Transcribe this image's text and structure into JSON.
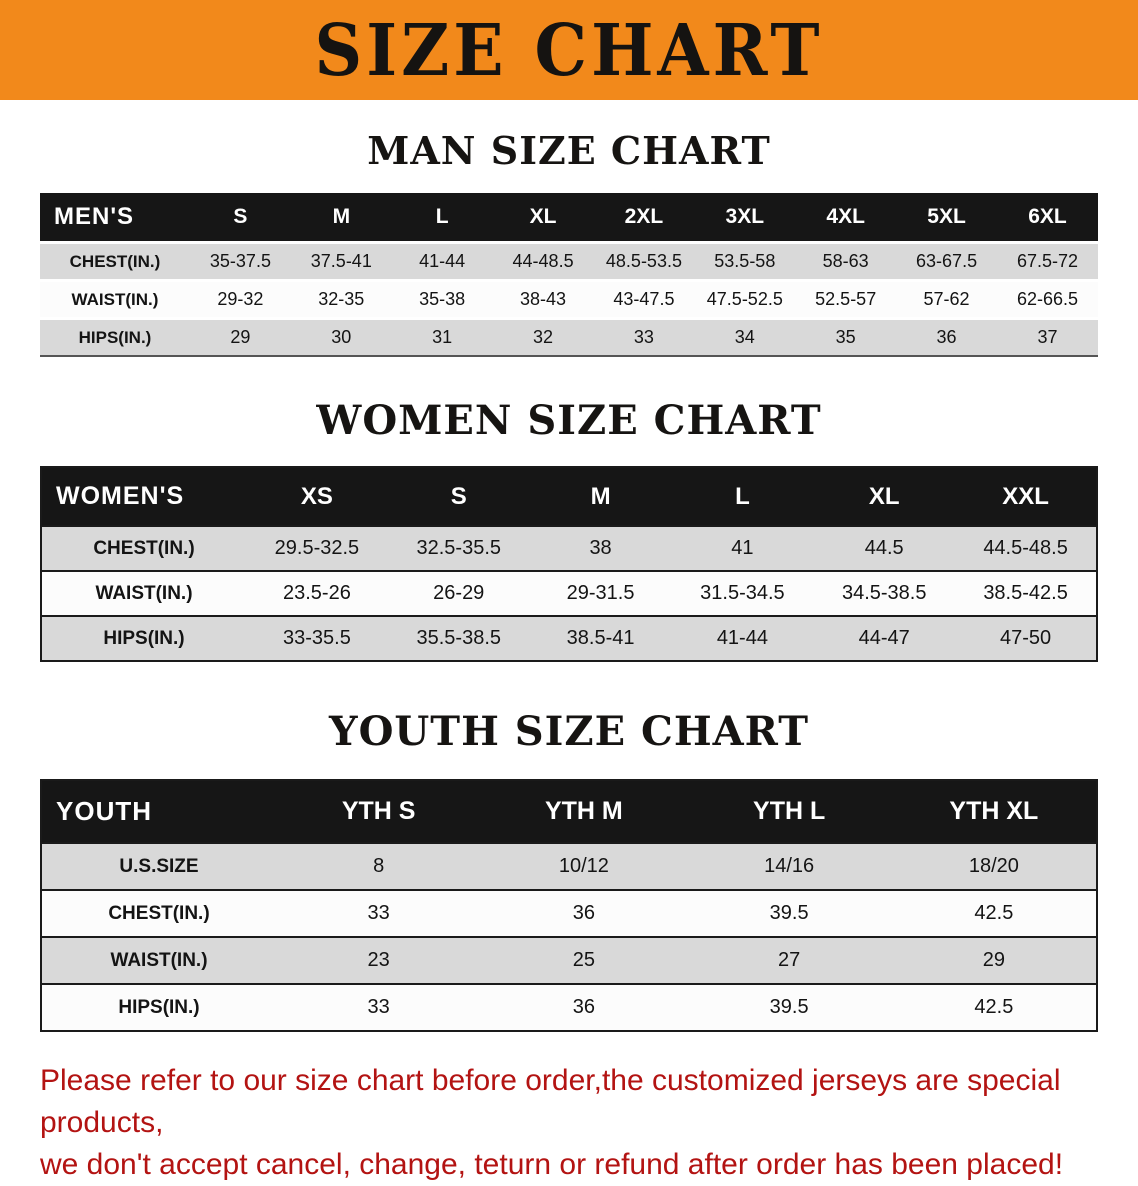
{
  "banner": {
    "title": "SIZE CHART"
  },
  "colors": {
    "banner_bg": "#f2891b",
    "header_bar": "#161616",
    "row_stripe": "#d9d9d9",
    "notice_text": "#b31312"
  },
  "sections": {
    "men": {
      "heading": "MAN SIZE CHART",
      "table": {
        "label": "MEN'S",
        "columns": [
          "S",
          "M",
          "L",
          "XL",
          "2XL",
          "3XL",
          "4XL",
          "5XL",
          "6XL"
        ],
        "rows": [
          {
            "label": "CHEST(IN.)",
            "values": [
              "35-37.5",
              "37.5-41",
              "41-44",
              "44-48.5",
              "48.5-53.5",
              "53.5-58",
              "58-63",
              "63-67.5",
              "67.5-72"
            ]
          },
          {
            "label": "WAIST(IN.)",
            "values": [
              "29-32",
              "32-35",
              "35-38",
              "38-43",
              "43-47.5",
              "47.5-52.5",
              "52.5-57",
              "57-62",
              "62-66.5"
            ]
          },
          {
            "label": "HIPS(IN.)",
            "values": [
              "29",
              "30",
              "31",
              "32",
              "33",
              "34",
              "35",
              "36",
              "37"
            ]
          }
        ]
      }
    },
    "women": {
      "heading": "WOMEN SIZE CHART",
      "table": {
        "label": "WOMEN'S",
        "columns": [
          "XS",
          "S",
          "M",
          "L",
          "XL",
          "XXL"
        ],
        "rows": [
          {
            "label": "CHEST(IN.)",
            "values": [
              "29.5-32.5",
              "32.5-35.5",
              "38",
              "41",
              "44.5",
              "44.5-48.5"
            ]
          },
          {
            "label": "WAIST(IN.)",
            "values": [
              "23.5-26",
              "26-29",
              "29-31.5",
              "31.5-34.5",
              "34.5-38.5",
              "38.5-42.5"
            ]
          },
          {
            "label": "HIPS(IN.)",
            "values": [
              "33-35.5",
              "35.5-38.5",
              "38.5-41",
              "41-44",
              "44-47",
              "47-50"
            ]
          }
        ]
      }
    },
    "youth": {
      "heading": "YOUTH SIZE CHART",
      "table": {
        "label": "YOUTH",
        "columns": [
          "YTH S",
          "YTH M",
          "YTH L",
          "YTH XL"
        ],
        "rows": [
          {
            "label": "U.S.SIZE",
            "values": [
              "8",
              "10/12",
              "14/16",
              "18/20"
            ]
          },
          {
            "label": "CHEST(IN.)",
            "values": [
              "33",
              "36",
              "39.5",
              "42.5"
            ]
          },
          {
            "label": "WAIST(IN.)",
            "values": [
              "23",
              "25",
              "27",
              "29"
            ]
          },
          {
            "label": "HIPS(IN.)",
            "values": [
              "33",
              "36",
              "39.5",
              "42.5"
            ]
          }
        ]
      }
    }
  },
  "footer": {
    "line1": "Please refer to our size chart before order,the customized jerseys are special products,",
    "line2": "we don't accept cancel, change, teturn or refund after order has been placed!"
  }
}
